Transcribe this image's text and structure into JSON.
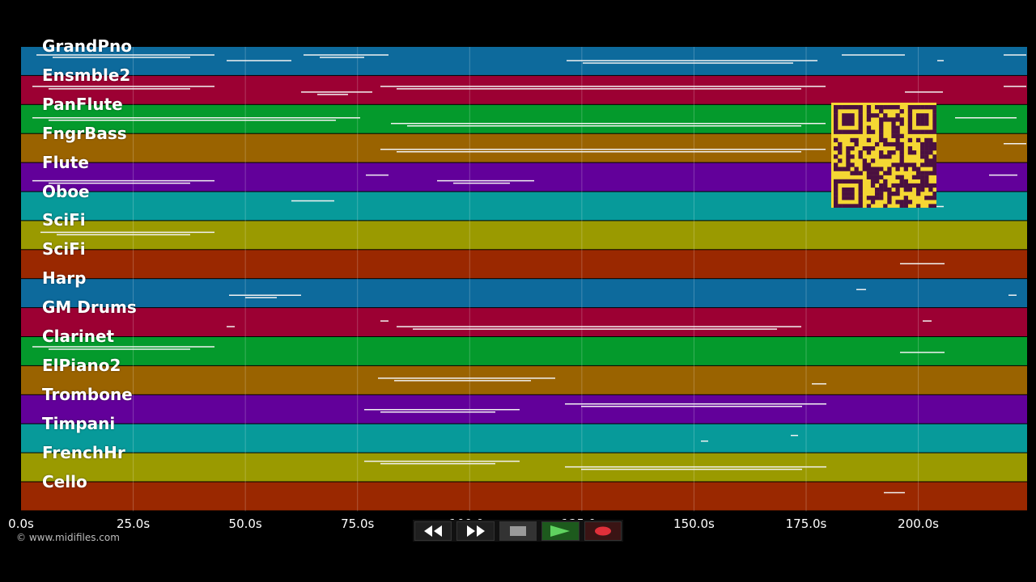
{
  "credit": "© www.midifiles.com",
  "tracks": [
    {
      "name": "GrandPno",
      "color": "#0d6a9c"
    },
    {
      "name": "Ensmble2",
      "color": "#9c0033"
    },
    {
      "name": "PanFlute",
      "color": "#049a2c"
    },
    {
      "name": "FngrBass",
      "color": "#9a6300"
    },
    {
      "name": "Flute",
      "color": "#62009a"
    },
    {
      "name": "Oboe",
      "color": "#079a9a"
    },
    {
      "name": "SciFi",
      "color": "#9a9a00"
    },
    {
      "name": "SciFi",
      "color": "#9a2800"
    },
    {
      "name": "Harp",
      "color": "#0d6a9c"
    },
    {
      "name": "GM Drums",
      "color": "#9c0033"
    },
    {
      "name": "Clarinet",
      "color": "#049a2c"
    },
    {
      "name": "ElPiano2",
      "color": "#9a6300"
    },
    {
      "name": "Trombone",
      "color": "#62009a"
    },
    {
      "name": "Timpani",
      "color": "#079a9a"
    },
    {
      "name": "FrenchHr",
      "color": "#9a9a00"
    },
    {
      "name": "Cello",
      "color": "#9a2800"
    }
  ],
  "timeline": {
    "ticks": [
      "0.0s",
      "25.0s",
      "50.0s",
      "75.0s",
      "100.0s",
      "125.0s",
      "150.0s",
      "175.0s",
      "200.0s"
    ],
    "tick_seconds": [
      0,
      25,
      50,
      75,
      100,
      125,
      150,
      175,
      200
    ]
  },
  "transport": {
    "buttons": [
      {
        "name": "rewind-button",
        "icon": "rewind-icon"
      },
      {
        "name": "fast-forward-button",
        "icon": "fast-forward-icon"
      },
      {
        "name": "stop-button",
        "icon": "stop-icon"
      },
      {
        "name": "play-button",
        "icon": "play-icon"
      },
      {
        "name": "record-button",
        "icon": "record-icon"
      }
    ]
  },
  "qr_icon": "qr-code-icon"
}
